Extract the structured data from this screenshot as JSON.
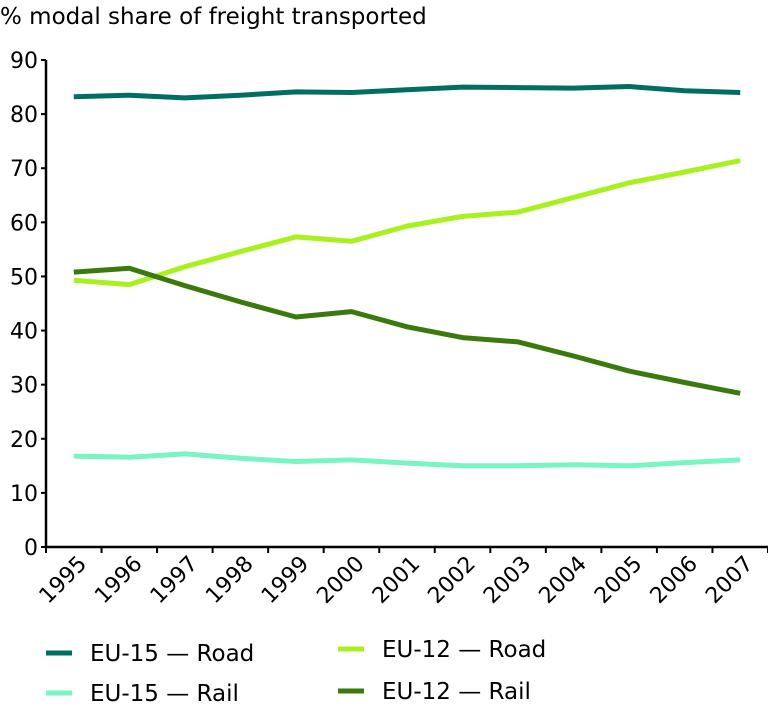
{
  "chart_data": {
    "type": "line",
    "title": "% modal share of freight transported",
    "xlabel": "",
    "ylabel": "",
    "ylim": [
      0,
      90
    ],
    "yticks": [
      "0",
      "10",
      "20",
      "30",
      "40",
      "50",
      "60",
      "70",
      "80",
      "90"
    ],
    "categories": [
      "1995",
      "1996",
      "1997",
      "1998",
      "1999",
      "2000",
      "2001",
      "2002",
      "2003",
      "2004",
      "2005",
      "2006",
      "2007"
    ],
    "grid": false,
    "legend_position": "bottom",
    "series": [
      {
        "name": "EU-15 — Road",
        "color": "#006e63",
        "values": [
          83.2,
          83.5,
          83.0,
          83.5,
          84.1,
          84.0,
          84.5,
          85.0,
          84.9,
          84.8,
          85.1,
          84.3,
          84.0
        ]
      },
      {
        "name": "EU-12 — Road",
        "color": "#a8f01e",
        "values": [
          49.3,
          48.5,
          51.8,
          54.6,
          57.3,
          56.5,
          59.3,
          61.1,
          61.9,
          64.6,
          67.3,
          69.3,
          71.4
        ]
      },
      {
        "name": "EU-15 — Rail",
        "color": "#78f5c0",
        "values": [
          16.8,
          16.6,
          17.2,
          16.4,
          15.8,
          16.1,
          15.5,
          15.0,
          15.0,
          15.2,
          15.0,
          15.6,
          16.1
        ]
      },
      {
        "name": "EU-12 — Rail",
        "color": "#3a7a0c",
        "values": [
          50.8,
          51.5,
          48.3,
          45.3,
          42.5,
          43.5,
          40.7,
          38.7,
          37.9,
          35.3,
          32.5,
          30.4,
          28.4
        ]
      }
    ]
  }
}
